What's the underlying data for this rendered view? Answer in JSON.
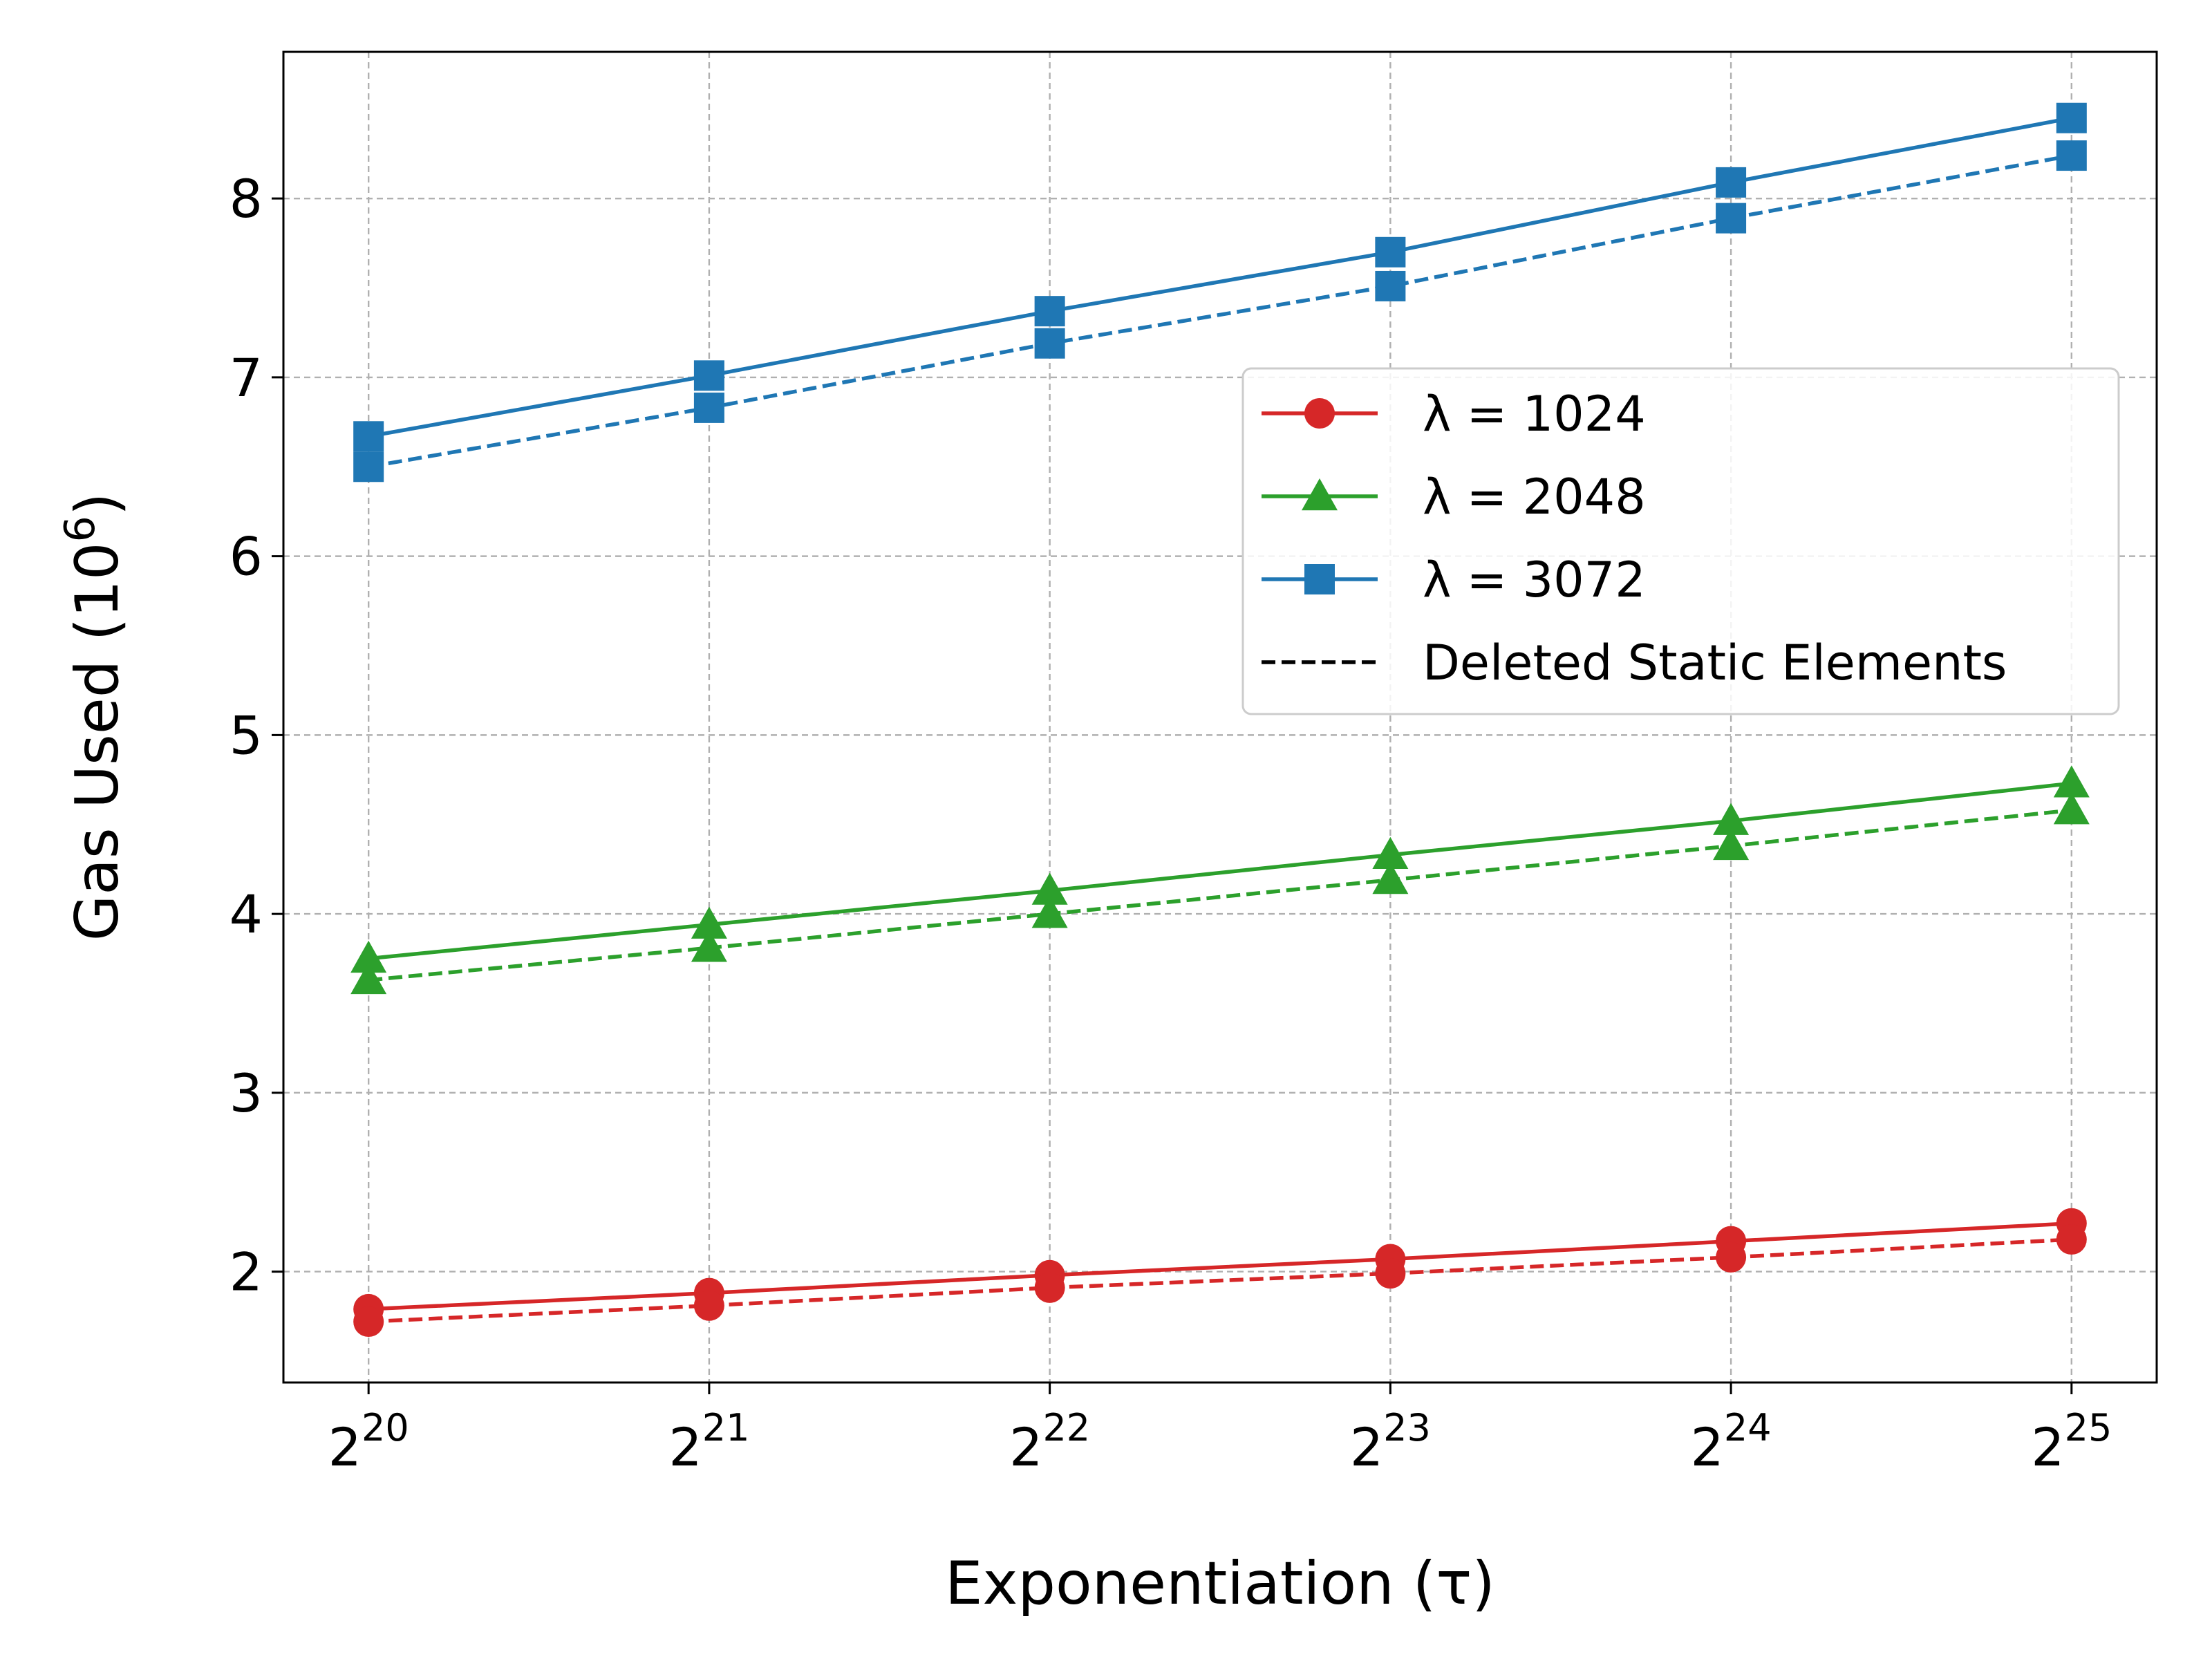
{
  "chart_data": {
    "type": "line",
    "x": [
      20,
      21,
      22,
      23,
      24,
      25
    ],
    "x_tick_base": "2",
    "x_ticks": [
      "20",
      "21",
      "22",
      "23",
      "24",
      "25"
    ],
    "xlabel": "Exponentiation (τ)",
    "ylabel_main": "Gas Used (10",
    "ylabel_sup": "6",
    "ylabel_close": ")",
    "y_ticks": [
      "2",
      "3",
      "4",
      "5",
      "6",
      "7",
      "8"
    ],
    "ylim": [
      1.38,
      8.82
    ],
    "xlim": [
      19.75,
      25.25
    ],
    "grid": true,
    "legend_position": "center-right",
    "series": [
      {
        "name": "λ = 1024",
        "color": "#d62728",
        "marker": "circle",
        "linestyle": "solid",
        "values": [
          1.79,
          1.88,
          1.98,
          2.07,
          2.17,
          2.27
        ]
      },
      {
        "name": "λ = 1024 (deleted static elements)",
        "color": "#d62728",
        "marker": "circle",
        "linestyle": "dashed",
        "values": [
          1.72,
          1.81,
          1.91,
          1.99,
          2.08,
          2.18
        ]
      },
      {
        "name": "λ = 2048",
        "color": "#2ca02c",
        "marker": "triangle",
        "linestyle": "solid",
        "values": [
          3.75,
          3.94,
          4.13,
          4.33,
          4.52,
          4.73
        ]
      },
      {
        "name": "λ = 2048 (deleted static elements)",
        "color": "#2ca02c",
        "marker": "triangle",
        "linestyle": "dashed",
        "values": [
          3.63,
          3.81,
          4.0,
          4.19,
          4.38,
          4.58
        ]
      },
      {
        "name": "λ = 3072",
        "color": "#1f77b4",
        "marker": "square",
        "linestyle": "solid",
        "values": [
          6.67,
          7.01,
          7.37,
          7.7,
          8.09,
          8.45
        ]
      },
      {
        "name": "λ = 3072 (deleted static elements)",
        "color": "#1f77b4",
        "marker": "square",
        "linestyle": "dashed",
        "values": [
          6.5,
          6.83,
          7.19,
          7.51,
          7.89,
          8.24
        ]
      }
    ],
    "legend": [
      {
        "label": "λ = 1024",
        "color": "#d62728",
        "marker": "circle",
        "linestyle": "solid"
      },
      {
        "label": "λ = 2048",
        "color": "#2ca02c",
        "marker": "triangle",
        "linestyle": "solid"
      },
      {
        "label": "λ = 3072",
        "color": "#1f77b4",
        "marker": "square",
        "linestyle": "solid"
      },
      {
        "label": "Deleted Static Elements",
        "color": "#000000",
        "marker": "none",
        "linestyle": "dashed"
      }
    ]
  }
}
